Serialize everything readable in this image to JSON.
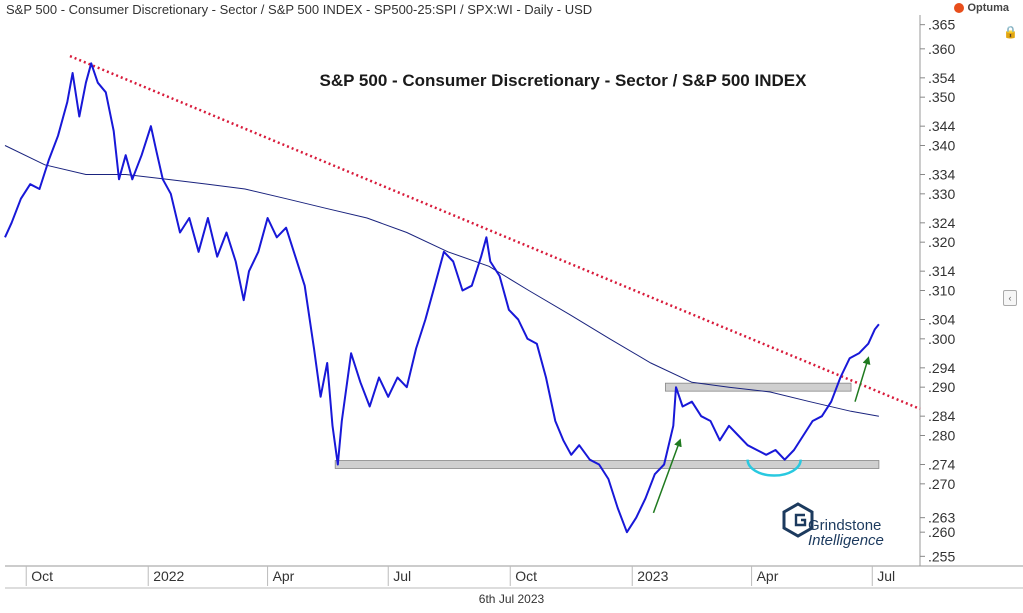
{
  "header": {
    "title": "S&P 500 - Consumer Discretionary - Sector / S&P 500 INDEX - SP500-25:SPI / SPX:WI - Daily - USD",
    "brand": "Optuma"
  },
  "footer": {
    "date": "6th Jul 2023"
  },
  "logo": {
    "line1": "Grindstone",
    "line2": "Intelligence"
  },
  "colors": {
    "price": "#1818d8",
    "moving_average": "#1a237e",
    "trendline": "#d81b3b",
    "arrow": "#1f7a1f",
    "arc": "#29c9e0",
    "zone_fill": "#cfcfcf",
    "zone_stroke": "#888888"
  },
  "chart_data": {
    "type": "line",
    "title": "S&P 500 - Consumer Discretionary - Sector / S&P 500 INDEX",
    "xlabel": "",
    "ylabel": "",
    "ylim": [
      0.253,
      0.367
    ],
    "xlim": [
      "2021-09-15",
      "2023-08-06"
    ],
    "grid": false,
    "x_ticks": [
      {
        "date": "2021-10-01",
        "label": "Oct"
      },
      {
        "date": "2022-01-01",
        "label": "2022"
      },
      {
        "date": "2022-04-01",
        "label": "Apr"
      },
      {
        "date": "2022-07-01",
        "label": "Jul"
      },
      {
        "date": "2022-10-01",
        "label": "Oct"
      },
      {
        "date": "2023-01-01",
        "label": "2023"
      },
      {
        "date": "2023-04-01",
        "label": "Apr"
      },
      {
        "date": "2023-07-01",
        "label": "Jul"
      }
    ],
    "y_ticks": [
      0.255,
      0.26,
      0.263,
      0.27,
      0.274,
      0.28,
      0.284,
      0.29,
      0.294,
      0.3,
      0.304,
      0.31,
      0.314,
      0.32,
      0.324,
      0.33,
      0.334,
      0.34,
      0.344,
      0.35,
      0.354,
      0.36,
      0.365
    ],
    "series": [
      {
        "role": "price",
        "points": [
          {
            "x": "2021-09-15",
            "y": 0.321
          },
          {
            "x": "2021-09-20",
            "y": 0.324
          },
          {
            "x": "2021-09-27",
            "y": 0.329
          },
          {
            "x": "2021-10-04",
            "y": 0.332
          },
          {
            "x": "2021-10-11",
            "y": 0.331
          },
          {
            "x": "2021-10-18",
            "y": 0.337
          },
          {
            "x": "2021-10-25",
            "y": 0.342
          },
          {
            "x": "2021-11-01",
            "y": 0.349
          },
          {
            "x": "2021-11-05",
            "y": 0.355
          },
          {
            "x": "2021-11-10",
            "y": 0.346
          },
          {
            "x": "2021-11-15",
            "y": 0.353
          },
          {
            "x": "2021-11-19",
            "y": 0.357
          },
          {
            "x": "2021-11-24",
            "y": 0.353
          },
          {
            "x": "2021-11-30",
            "y": 0.351
          },
          {
            "x": "2021-12-06",
            "y": 0.343
          },
          {
            "x": "2021-12-10",
            "y": 0.333
          },
          {
            "x": "2021-12-15",
            "y": 0.338
          },
          {
            "x": "2021-12-20",
            "y": 0.333
          },
          {
            "x": "2021-12-27",
            "y": 0.338
          },
          {
            "x": "2022-01-03",
            "y": 0.344
          },
          {
            "x": "2022-01-07",
            "y": 0.339
          },
          {
            "x": "2022-01-12",
            "y": 0.333
          },
          {
            "x": "2022-01-18",
            "y": 0.33
          },
          {
            "x": "2022-01-25",
            "y": 0.322
          },
          {
            "x": "2022-02-01",
            "y": 0.325
          },
          {
            "x": "2022-02-08",
            "y": 0.318
          },
          {
            "x": "2022-02-15",
            "y": 0.325
          },
          {
            "x": "2022-02-22",
            "y": 0.317
          },
          {
            "x": "2022-03-01",
            "y": 0.322
          },
          {
            "x": "2022-03-08",
            "y": 0.316
          },
          {
            "x": "2022-03-14",
            "y": 0.308
          },
          {
            "x": "2022-03-18",
            "y": 0.314
          },
          {
            "x": "2022-03-25",
            "y": 0.318
          },
          {
            "x": "2022-04-01",
            "y": 0.325
          },
          {
            "x": "2022-04-08",
            "y": 0.321
          },
          {
            "x": "2022-04-15",
            "y": 0.323
          },
          {
            "x": "2022-04-22",
            "y": 0.317
          },
          {
            "x": "2022-04-29",
            "y": 0.311
          },
          {
            "x": "2022-05-06",
            "y": 0.298
          },
          {
            "x": "2022-05-11",
            "y": 0.288
          },
          {
            "x": "2022-05-16",
            "y": 0.295
          },
          {
            "x": "2022-05-20",
            "y": 0.282
          },
          {
            "x": "2022-05-24",
            "y": 0.274
          },
          {
            "x": "2022-05-27",
            "y": 0.283
          },
          {
            "x": "2022-06-03",
            "y": 0.297
          },
          {
            "x": "2022-06-10",
            "y": 0.291
          },
          {
            "x": "2022-06-17",
            "y": 0.286
          },
          {
            "x": "2022-06-24",
            "y": 0.292
          },
          {
            "x": "2022-07-01",
            "y": 0.288
          },
          {
            "x": "2022-07-08",
            "y": 0.292
          },
          {
            "x": "2022-07-15",
            "y": 0.29
          },
          {
            "x": "2022-07-22",
            "y": 0.298
          },
          {
            "x": "2022-07-29",
            "y": 0.304
          },
          {
            "x": "2022-08-05",
            "y": 0.311
          },
          {
            "x": "2022-08-12",
            "y": 0.318
          },
          {
            "x": "2022-08-19",
            "y": 0.316
          },
          {
            "x": "2022-08-26",
            "y": 0.31
          },
          {
            "x": "2022-09-02",
            "y": 0.311
          },
          {
            "x": "2022-09-09",
            "y": 0.317
          },
          {
            "x": "2022-09-13",
            "y": 0.321
          },
          {
            "x": "2022-09-16",
            "y": 0.316
          },
          {
            "x": "2022-09-23",
            "y": 0.313
          },
          {
            "x": "2022-09-30",
            "y": 0.306
          },
          {
            "x": "2022-10-07",
            "y": 0.304
          },
          {
            "x": "2022-10-14",
            "y": 0.3
          },
          {
            "x": "2022-10-21",
            "y": 0.299
          },
          {
            "x": "2022-10-28",
            "y": 0.292
          },
          {
            "x": "2022-11-04",
            "y": 0.283
          },
          {
            "x": "2022-11-10",
            "y": 0.279
          },
          {
            "x": "2022-11-16",
            "y": 0.276
          },
          {
            "x": "2022-11-22",
            "y": 0.278
          },
          {
            "x": "2022-11-30",
            "y": 0.275
          },
          {
            "x": "2022-12-07",
            "y": 0.274
          },
          {
            "x": "2022-12-14",
            "y": 0.271
          },
          {
            "x": "2022-12-21",
            "y": 0.265
          },
          {
            "x": "2022-12-28",
            "y": 0.26
          },
          {
            "x": "2023-01-04",
            "y": 0.263
          },
          {
            "x": "2023-01-11",
            "y": 0.267
          },
          {
            "x": "2023-01-18",
            "y": 0.272
          },
          {
            "x": "2023-01-25",
            "y": 0.274
          },
          {
            "x": "2023-02-01",
            "y": 0.282
          },
          {
            "x": "2023-02-03",
            "y": 0.29
          },
          {
            "x": "2023-02-08",
            "y": 0.286
          },
          {
            "x": "2023-02-15",
            "y": 0.287
          },
          {
            "x": "2023-02-22",
            "y": 0.284
          },
          {
            "x": "2023-03-01",
            "y": 0.283
          },
          {
            "x": "2023-03-08",
            "y": 0.279
          },
          {
            "x": "2023-03-15",
            "y": 0.282
          },
          {
            "x": "2023-03-22",
            "y": 0.28
          },
          {
            "x": "2023-03-29",
            "y": 0.278
          },
          {
            "x": "2023-04-05",
            "y": 0.277
          },
          {
            "x": "2023-04-12",
            "y": 0.276
          },
          {
            "x": "2023-04-19",
            "y": 0.277
          },
          {
            "x": "2023-04-26",
            "y": 0.275
          },
          {
            "x": "2023-05-03",
            "y": 0.277
          },
          {
            "x": "2023-05-10",
            "y": 0.28
          },
          {
            "x": "2023-05-17",
            "y": 0.283
          },
          {
            "x": "2023-05-24",
            "y": 0.284
          },
          {
            "x": "2023-05-31",
            "y": 0.287
          },
          {
            "x": "2023-06-07",
            "y": 0.292
          },
          {
            "x": "2023-06-14",
            "y": 0.296
          },
          {
            "x": "2023-06-21",
            "y": 0.297
          },
          {
            "x": "2023-06-28",
            "y": 0.299
          },
          {
            "x": "2023-07-03",
            "y": 0.302
          },
          {
            "x": "2023-07-06",
            "y": 0.303
          }
        ]
      },
      {
        "role": "moving_average",
        "points": [
          {
            "x": "2021-09-15",
            "y": 0.34
          },
          {
            "x": "2021-10-15",
            "y": 0.336
          },
          {
            "x": "2021-11-15",
            "y": 0.334
          },
          {
            "x": "2021-12-15",
            "y": 0.334
          },
          {
            "x": "2022-01-15",
            "y": 0.333
          },
          {
            "x": "2022-02-15",
            "y": 0.332
          },
          {
            "x": "2022-03-15",
            "y": 0.331
          },
          {
            "x": "2022-04-15",
            "y": 0.329
          },
          {
            "x": "2022-05-15",
            "y": 0.327
          },
          {
            "x": "2022-06-15",
            "y": 0.325
          },
          {
            "x": "2022-07-15",
            "y": 0.322
          },
          {
            "x": "2022-08-15",
            "y": 0.318
          },
          {
            "x": "2022-09-15",
            "y": 0.315
          },
          {
            "x": "2022-10-15",
            "y": 0.31
          },
          {
            "x": "2022-11-15",
            "y": 0.305
          },
          {
            "x": "2022-12-15",
            "y": 0.3
          },
          {
            "x": "2023-01-15",
            "y": 0.295
          },
          {
            "x": "2023-02-15",
            "y": 0.291
          },
          {
            "x": "2023-03-15",
            "y": 0.29
          },
          {
            "x": "2023-04-15",
            "y": 0.289
          },
          {
            "x": "2023-05-15",
            "y": 0.287
          },
          {
            "x": "2023-06-15",
            "y": 0.285
          },
          {
            "x": "2023-07-06",
            "y": 0.284
          }
        ]
      }
    ],
    "trendline": {
      "x1": "2021-11-03",
      "y1": 0.3585,
      "x2": "2023-08-06",
      "y2": 0.2855
    },
    "zones": [
      {
        "x1": "2022-05-22",
        "x2": "2023-07-06",
        "y": 0.274
      },
      {
        "x1": "2023-01-26",
        "x2": "2023-06-15",
        "y": 0.29
      }
    ],
    "arrows": [
      {
        "x1": "2023-01-17",
        "y1": 0.264,
        "x2": "2023-02-06",
        "y2": 0.279
      },
      {
        "x1": "2023-06-18",
        "y1": 0.287,
        "x2": "2023-06-28",
        "y2": 0.296
      }
    ],
    "arc": {
      "x1": "2023-03-29",
      "x2": "2023-05-08",
      "y": 0.275
    }
  }
}
